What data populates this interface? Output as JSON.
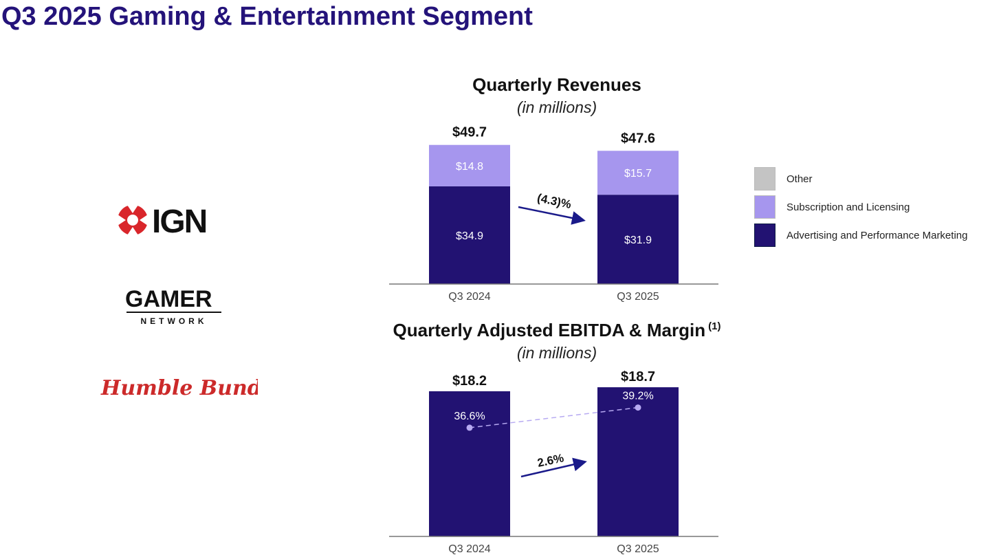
{
  "page": {
    "title": "Q3 2025 Gaming & Entertainment Segment"
  },
  "logos": {
    "ign": "IGN",
    "gamer_main": "GAMER",
    "gamer_sub": "NETWORK",
    "humble": "Humble Bundle"
  },
  "colors": {
    "title": "#24137a",
    "advertising": "#221272",
    "subscription": "#a696ee",
    "other": "#c4c4c4",
    "arrow": "#1a1a8a",
    "margin_line": "#b7aaf2",
    "ign_red": "#d9262b",
    "humble_red": "#cc2a2a"
  },
  "legend": {
    "items": [
      {
        "label": "Other",
        "color": "#c4c4c4"
      },
      {
        "label": "Subscription and Licensing",
        "color": "#a696ee"
      },
      {
        "label": "Advertising and Performance Marketing",
        "color": "#221272"
      }
    ]
  },
  "chart_data": [
    {
      "type": "bar",
      "stacked": true,
      "title": "Quarterly Revenues",
      "subtitle": "(in millions)",
      "categories": [
        "Q3 2024",
        "Q3 2025"
      ],
      "series": [
        {
          "name": "Advertising and Performance Marketing",
          "values": [
            34.9,
            31.9
          ],
          "labels": [
            "$34.9",
            "$31.9"
          ]
        },
        {
          "name": "Subscription and Licensing",
          "values": [
            14.8,
            15.7
          ],
          "labels": [
            "$14.8",
            "$15.7"
          ]
        },
        {
          "name": "Other",
          "values": [
            0,
            0
          ],
          "labels": [
            "",
            ""
          ]
        }
      ],
      "totals": [
        49.7,
        47.6
      ],
      "total_labels": [
        "$49.7",
        "$47.6"
      ],
      "change_label": "(4.3)%",
      "change_direction": "down",
      "ylim": [
        0,
        50
      ],
      "legend": "right"
    },
    {
      "type": "bar",
      "title": "Quarterly Adjusted EBITDA & Margin",
      "title_footnote": "(1)",
      "subtitle": "(in millions)",
      "categories": [
        "Q3 2024",
        "Q3 2025"
      ],
      "values": [
        18.2,
        18.7
      ],
      "value_labels": [
        "$18.2",
        "$18.7"
      ],
      "margin": [
        36.6,
        39.2
      ],
      "margin_labels": [
        "36.6%",
        "39.2%"
      ],
      "change_label": "2.6%",
      "change_direction": "up",
      "ylim": [
        0,
        19
      ]
    }
  ]
}
